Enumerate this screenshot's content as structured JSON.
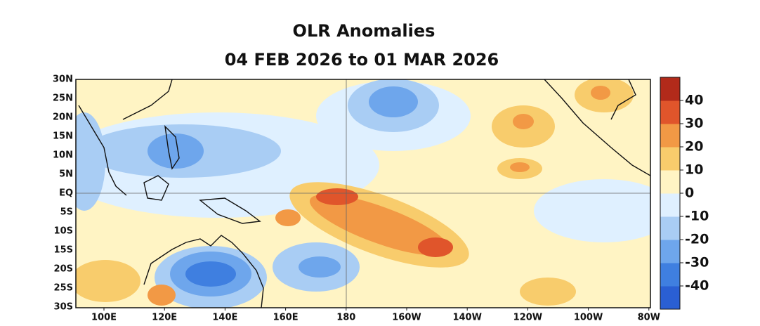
{
  "title": "OLR Anomalies",
  "subtitle": "04 FEB 2026 to 01 MAR 2026",
  "map": {
    "lon_labels": [
      "100E",
      "120E",
      "140E",
      "160E",
      "180",
      "160W",
      "140W",
      "120W",
      "100W",
      "80W"
    ],
    "lat_labels": [
      "30N",
      "25N",
      "20N",
      "15N",
      "10N",
      "5N",
      "EQ",
      "5S",
      "10S",
      "15S",
      "20S",
      "25S",
      "30S"
    ]
  },
  "colorbar": {
    "lim": [
      -50,
      50
    ],
    "ticks": [
      -40,
      -30,
      -20,
      -10,
      0,
      10,
      20,
      30,
      40
    ],
    "colors": [
      "#2a5fd3",
      "#3f7fe0",
      "#6ea6ec",
      "#a9cdf4",
      "#dff0ff",
      "#fff4c4",
      "#f8cc6c",
      "#f29945",
      "#e0552b",
      "#b22a1a"
    ]
  }
}
